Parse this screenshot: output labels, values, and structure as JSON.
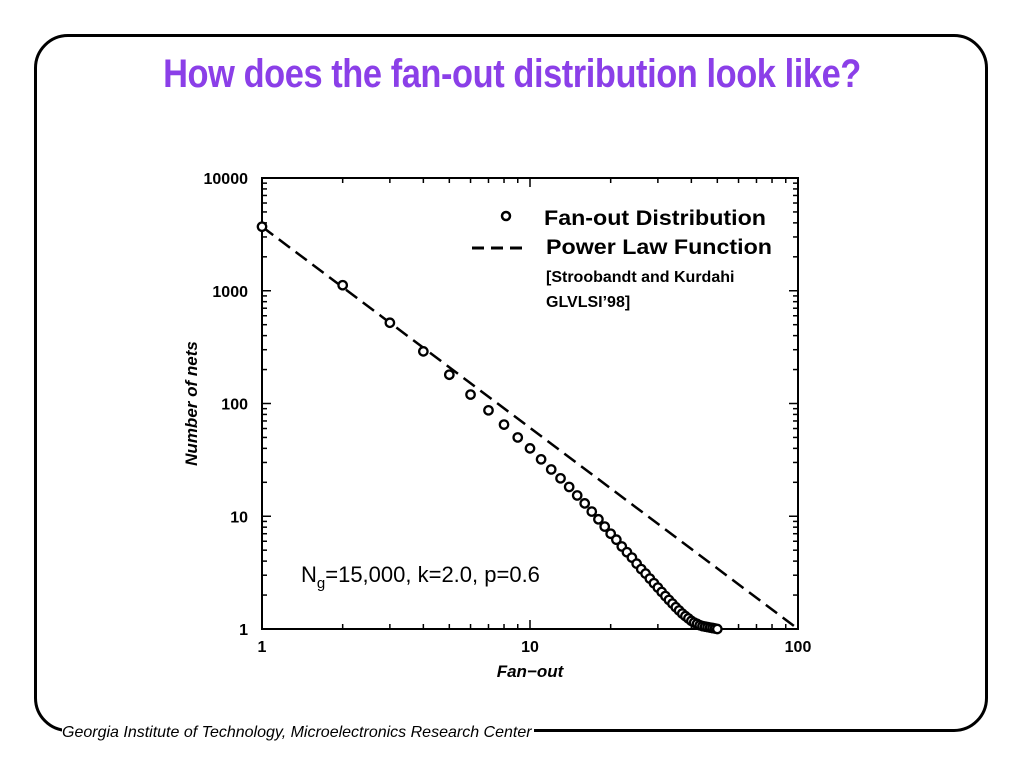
{
  "slide": {
    "title": "How does the fan-out distribution look like?",
    "footer": "Georgia Institute of Technology, Microelectronics Research Center",
    "title_color": "#8b3fe8"
  },
  "chart_data": {
    "type": "scatter",
    "x_scale": "log",
    "y_scale": "log",
    "xlim": [
      1,
      100
    ],
    "ylim": [
      1,
      10000
    ],
    "xlabel": "Fan−out",
    "ylabel": "Number of nets",
    "x_ticks": [
      "1",
      "10",
      "100"
    ],
    "y_ticks": [
      "1",
      "10",
      "100",
      "1000",
      "10000"
    ],
    "grid": false,
    "legend": {
      "position": "top-right",
      "entries": [
        "Fan-out Distribution",
        "Power Law Function"
      ],
      "citation": [
        "[Stroobandt and Kurdahi",
        "GLVLSI’98]"
      ]
    },
    "annotation": {
      "base": "N",
      "subscript": "g",
      "rest": "=15,000, k=2.0, p=0.6"
    },
    "series": [
      {
        "name": "Fan-out Distribution",
        "type": "scatter",
        "x": [
          1,
          2,
          3,
          4,
          5,
          6,
          7,
          8,
          9,
          10,
          11,
          12,
          13,
          14,
          15,
          16,
          17,
          18,
          19,
          20,
          21,
          22,
          23,
          24,
          25,
          26,
          27,
          28,
          29,
          30,
          31,
          32,
          33,
          34,
          35,
          36,
          37,
          38,
          39,
          40,
          41,
          42,
          43,
          44,
          45,
          46,
          47,
          48,
          49,
          50
        ],
        "y": [
          3700,
          1120,
          520,
          290,
          180,
          120,
          87,
          65,
          50,
          40,
          32,
          26,
          21.7,
          18.2,
          15.3,
          13.0,
          11.0,
          9.4,
          8.1,
          7.0,
          6.2,
          5.4,
          4.8,
          4.3,
          3.8,
          3.4,
          3.1,
          2.8,
          2.55,
          2.33,
          2.13,
          1.96,
          1.81,
          1.68,
          1.56,
          1.46,
          1.37,
          1.3,
          1.24,
          1.18,
          1.14,
          1.11,
          1.08,
          1.06,
          1.05,
          1.04,
          1.03,
          1.02,
          1.01,
          1.0
        ]
      },
      {
        "name": "Power Law Function",
        "type": "line",
        "style": "dashed",
        "x": [
          1,
          100
        ],
        "y": [
          3700,
          1.0
        ]
      }
    ]
  }
}
